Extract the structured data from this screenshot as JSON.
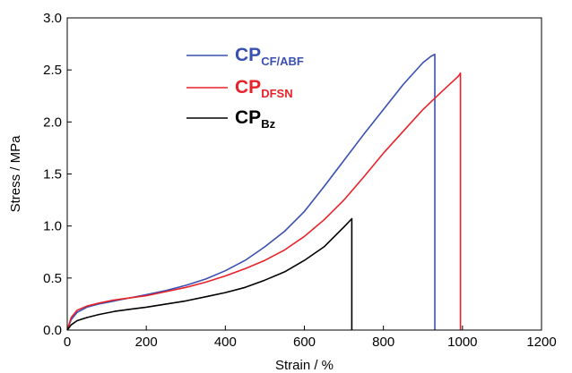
{
  "chart_data": {
    "type": "line",
    "title": "",
    "xlabel": "Strain / %",
    "ylabel": "Stress / MPa",
    "xlim": [
      0,
      1200
    ],
    "ylim": [
      0,
      3.0
    ],
    "xticks": [
      0,
      200,
      400,
      600,
      800,
      1000,
      1200
    ],
    "yticks": [
      0.0,
      0.5,
      1.0,
      1.5,
      2.0,
      2.5,
      3.0
    ],
    "xtick_labels": [
      "0",
      "200",
      "400",
      "600",
      "800",
      "1000",
      "1200"
    ],
    "ytick_labels": [
      "0.0",
      "0.5",
      "1.0",
      "1.5",
      "2.0",
      "2.5",
      "3.0"
    ],
    "grid": false,
    "legend_position": "top-left",
    "series": [
      {
        "name": "CP",
        "subscript": "CF/ABF",
        "color": "#3a50b0",
        "x": [
          0,
          10,
          25,
          50,
          80,
          120,
          160,
          200,
          250,
          300,
          350,
          400,
          450,
          500,
          550,
          600,
          650,
          700,
          750,
          800,
          850,
          900,
          920,
          930,
          930
        ],
        "y": [
          0,
          0.1,
          0.17,
          0.22,
          0.25,
          0.28,
          0.31,
          0.34,
          0.38,
          0.43,
          0.49,
          0.57,
          0.67,
          0.8,
          0.95,
          1.14,
          1.38,
          1.63,
          1.88,
          2.12,
          2.36,
          2.57,
          2.63,
          2.65,
          0
        ],
        "break_strain": 930
      },
      {
        "name": "CP",
        "subscript": "DFSN",
        "color": "#e8222a",
        "x": [
          0,
          10,
          25,
          50,
          80,
          120,
          160,
          200,
          250,
          300,
          350,
          400,
          450,
          500,
          550,
          600,
          650,
          700,
          750,
          800,
          850,
          900,
          950,
          990,
          995,
          995
        ],
        "y": [
          0,
          0.12,
          0.19,
          0.23,
          0.26,
          0.29,
          0.31,
          0.33,
          0.37,
          0.41,
          0.46,
          0.52,
          0.59,
          0.67,
          0.77,
          0.9,
          1.06,
          1.25,
          1.47,
          1.7,
          1.91,
          2.12,
          2.3,
          2.44,
          2.47,
          0
        ],
        "break_strain": 995
      },
      {
        "name": "CP",
        "subscript": "Bz",
        "color": "#000000",
        "x": [
          0,
          10,
          25,
          50,
          80,
          120,
          160,
          200,
          250,
          300,
          350,
          400,
          450,
          500,
          550,
          600,
          650,
          700,
          720,
          720
        ],
        "y": [
          0,
          0.05,
          0.09,
          0.12,
          0.15,
          0.18,
          0.2,
          0.22,
          0.25,
          0.28,
          0.32,
          0.36,
          0.41,
          0.48,
          0.56,
          0.67,
          0.8,
          0.99,
          1.07,
          0
        ]
      }
    ]
  }
}
